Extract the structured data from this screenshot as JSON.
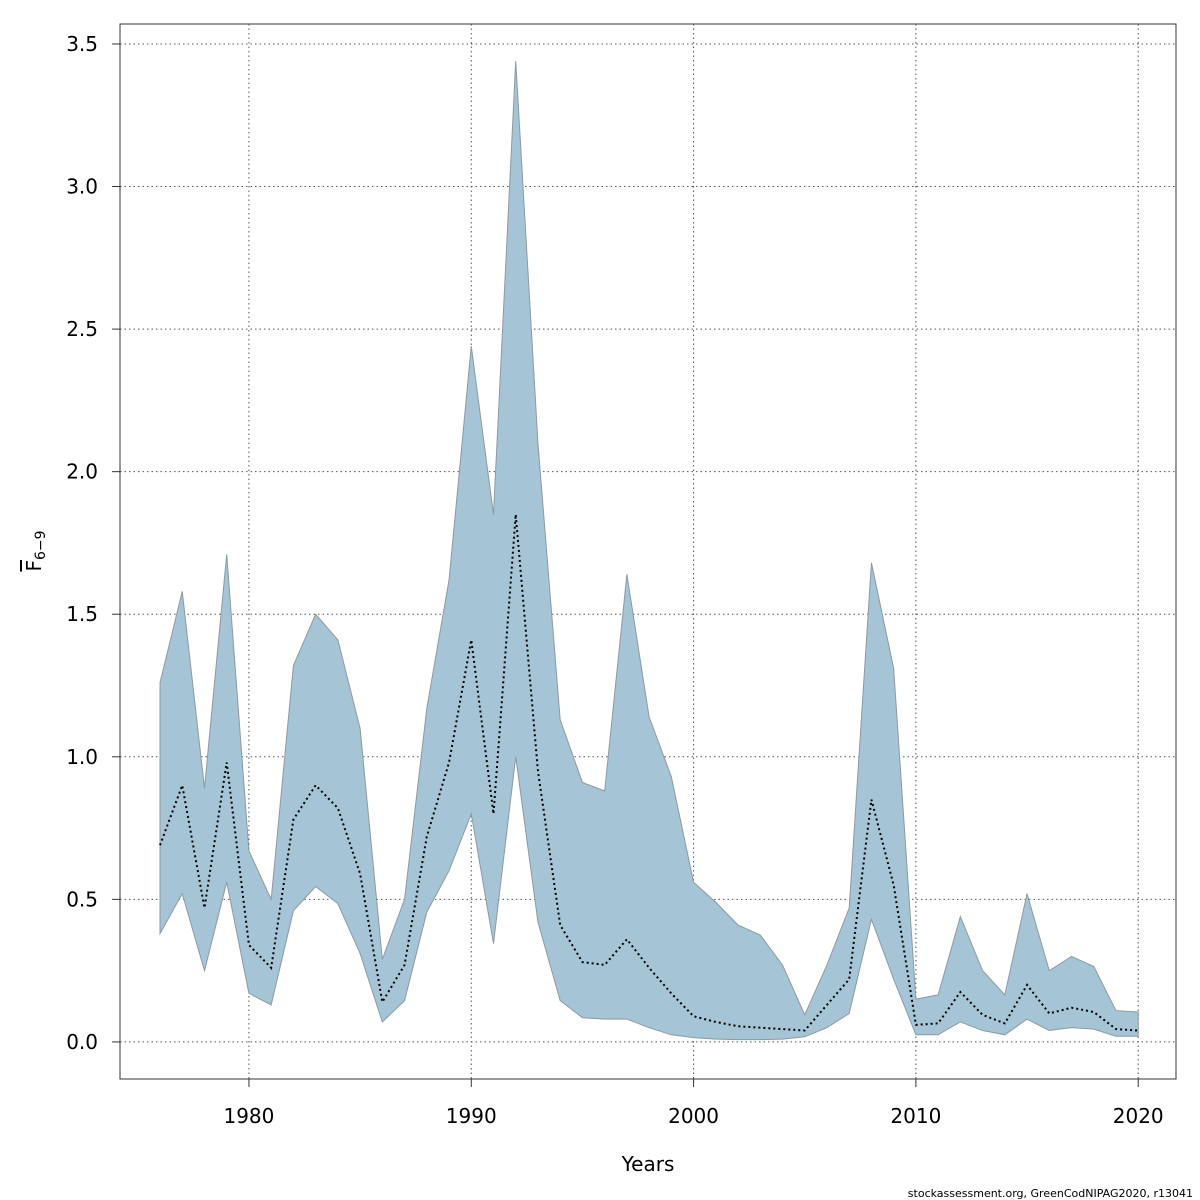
{
  "chart_data": {
    "type": "area",
    "xlabel": "Years",
    "ylabel": "F",
    "ylabel_sub": "6−9",
    "xlim": [
      1974.2,
      2021.7
    ],
    "ylim": [
      -0.13,
      3.57
    ],
    "x_ticks": [
      1980,
      1990,
      2000,
      2010,
      2020
    ],
    "x_tick_labels": [
      "1980",
      "1990",
      "2000",
      "2010",
      "2020"
    ],
    "y_ticks": [
      0,
      0.5,
      1,
      1.5,
      2,
      2.5,
      3,
      3.5
    ],
    "y_tick_labels": [
      "0.0",
      "0.5",
      "1.0",
      "1.5",
      "2.0",
      "2.5",
      "3.0",
      "3.5"
    ],
    "grid": true,
    "colors": {
      "band_fill": "#a5c4d5",
      "band_stroke": "#8c9aa3",
      "line": "#000000",
      "grid": "#555555",
      "box": "#333333"
    },
    "series": [
      {
        "years": [
          1976,
          1977,
          1978,
          1979,
          1980,
          1981,
          1982,
          1983,
          1984,
          1985,
          1986,
          1987,
          1988,
          1989,
          1990,
          1991,
          1992,
          1993,
          1994,
          1995,
          1996,
          1997,
          1998,
          1999,
          2000,
          2001,
          2002,
          2003,
          2004,
          2005,
          2006,
          2007,
          2008,
          2009,
          2010,
          2011,
          2012,
          2013,
          2014,
          2015,
          2016,
          2017,
          2018,
          2019,
          2020
        ],
        "estimate": [
          0.69,
          0.9,
          0.47,
          0.98,
          0.34,
          0.26,
          0.78,
          0.9,
          0.82,
          0.59,
          0.14,
          0.27,
          0.72,
          0.98,
          1.41,
          0.8,
          1.85,
          0.95,
          0.41,
          0.28,
          0.27,
          0.36,
          0.26,
          0.17,
          0.09,
          0.07,
          0.055,
          0.05,
          0.045,
          0.04,
          0.13,
          0.22,
          0.85,
          0.55,
          0.06,
          0.065,
          0.175,
          0.095,
          0.065,
          0.2,
          0.1,
          0.12,
          0.105,
          0.045,
          0.04
        ],
        "upper": [
          1.26,
          1.58,
          0.89,
          1.71,
          0.67,
          0.5,
          1.32,
          1.5,
          1.41,
          1.1,
          0.29,
          0.5,
          1.17,
          1.62,
          2.44,
          1.85,
          3.44,
          2.1,
          1.13,
          0.91,
          0.88,
          1.64,
          1.14,
          0.93,
          0.56,
          0.49,
          0.41,
          0.375,
          0.27,
          0.095,
          0.27,
          0.47,
          1.68,
          1.31,
          0.15,
          0.165,
          0.44,
          0.25,
          0.165,
          0.52,
          0.25,
          0.3,
          0.265,
          0.11,
          0.105
        ],
        "lower": [
          0.38,
          0.52,
          0.25,
          0.56,
          0.17,
          0.13,
          0.46,
          0.545,
          0.485,
          0.31,
          0.07,
          0.145,
          0.455,
          0.6,
          0.8,
          0.345,
          1.0,
          0.42,
          0.145,
          0.085,
          0.08,
          0.08,
          0.05,
          0.025,
          0.015,
          0.01,
          0.008,
          0.008,
          0.01,
          0.018,
          0.05,
          0.1,
          0.43,
          0.22,
          0.025,
          0.025,
          0.07,
          0.04,
          0.025,
          0.08,
          0.04,
          0.05,
          0.045,
          0.02,
          0.02
        ]
      }
    ]
  },
  "footer_text": "stockassessment.org, GreenCodNIPAG2020, r13041"
}
